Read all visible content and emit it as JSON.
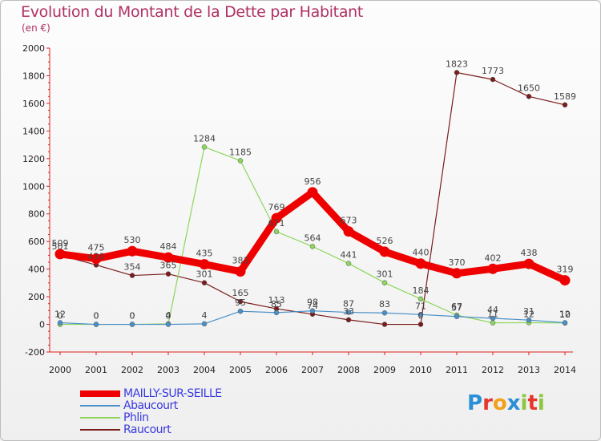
{
  "header": {
    "title": "Evolution du Montant de la Dette par Habitant",
    "unit": "(en €)"
  },
  "logo": {
    "text": "Proxiti",
    "letters": [
      "P",
      "r",
      "o",
      "x",
      "i",
      "t",
      "i"
    ],
    "colors": [
      "#2a8fd6",
      "#e4382e",
      "#f2a11f",
      "#2a8fd6",
      "#8dc63f",
      "#e4382e",
      "#8dc63f"
    ]
  },
  "chart_data": {
    "type": "line",
    "title": "Evolution du Montant de la Dette par Habitant",
    "ylabel": "(en €)",
    "ylim": [
      -200,
      2000
    ],
    "yticks": [
      "-200",
      "0",
      "200",
      "400",
      "600",
      "800",
      "1000",
      "1200",
      "1400",
      "1600",
      "1800",
      "2000"
    ],
    "ytick_values": [
      -200,
      0,
      200,
      400,
      600,
      800,
      1000,
      1200,
      1400,
      1600,
      1800,
      2000
    ],
    "categories": [
      "2000",
      "2001",
      "2002",
      "2003",
      "2004",
      "2005",
      "2006",
      "2007",
      "2008",
      "2009",
      "2010",
      "2011",
      "2012",
      "2013",
      "2014"
    ],
    "grid": false,
    "legend_position": "bottom-left",
    "series": [
      {
        "name": "MAILLY-SUR-SEILLE",
        "color": "#ee0000",
        "values": [
          509,
          475,
          530,
          484,
          435,
          383,
          769,
          956,
          673,
          526,
          440,
          370,
          402,
          438,
          319
        ],
        "labels": [
          "509",
          "475",
          "530",
          "484",
          "435",
          "383",
          "769",
          "956",
          "673",
          "526",
          "440",
          "370",
          "402",
          "438",
          "319"
        ]
      },
      {
        "name": "Abaucourt",
        "color": "#4a90c8",
        "values": [
          12,
          0,
          0,
          0,
          4,
          95,
          85,
          98,
          87,
          83,
          71,
          57,
          44,
          31,
          12
        ],
        "labels": [
          "12",
          "0",
          "0",
          "0",
          "4",
          "95",
          "85",
          "98",
          "87",
          "83",
          "71",
          "57",
          "44",
          "31",
          "12"
        ]
      },
      {
        "name": "Phlin",
        "color": "#8cd65b",
        "values": [
          0,
          0,
          0,
          4,
          1284,
          1185,
          671,
          564,
          441,
          301,
          184,
          67,
          11,
          12,
          10
        ],
        "labels": [
          "0",
          "0",
          "0",
          "4",
          "1284",
          "1185",
          "671",
          "564",
          "441",
          "301",
          "184",
          "67",
          "11",
          "12",
          "10"
        ]
      },
      {
        "name": "Raucourt",
        "color": "#7b1c1c",
        "values": [
          501,
          430,
          354,
          365,
          301,
          165,
          113,
          74,
          33,
          0,
          0,
          1823,
          1773,
          1650,
          1589
        ],
        "labels": [
          "501",
          "430",
          "354",
          "365",
          "301",
          "165",
          "113",
          "74",
          "33",
          "",
          "0",
          "1823",
          "1773",
          "1650",
          "1589"
        ]
      }
    ]
  }
}
